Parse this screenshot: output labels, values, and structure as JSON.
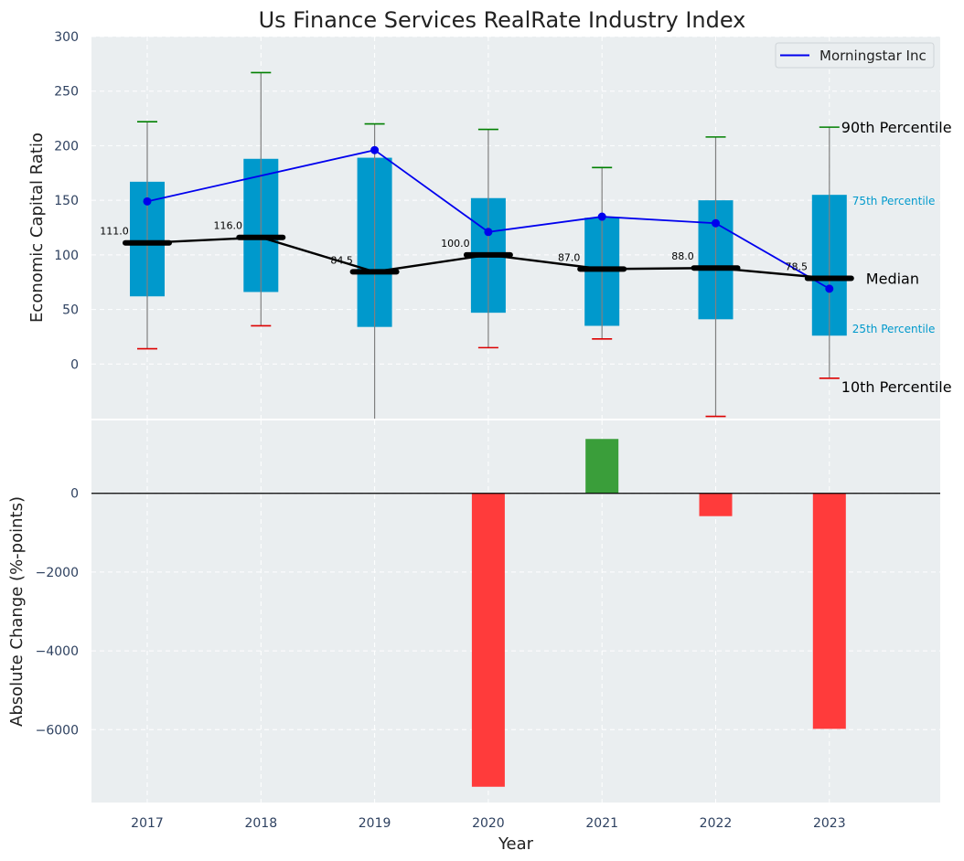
{
  "title": "Us Finance Services RealRate Industry Index",
  "xlabel": "Year",
  "colors": {
    "panel_bg": "#eaeef0",
    "box": "#0099cc",
    "median": "#000000",
    "morningstar": "#0000ee",
    "p90_cap": "#008000",
    "p10_cap": "#dd0000",
    "whisker": "#808080",
    "increase": "#3a9e3a",
    "decrease": "#ff3b3b",
    "tick_text": "#2e4160"
  },
  "chart_data": [
    {
      "type": "box",
      "ylabel": "Economic Capital Ratio",
      "ylim": [
        -50,
        300
      ],
      "yticks": [
        0,
        50,
        100,
        150,
        200,
        250,
        300
      ],
      "grid": true,
      "legend": {
        "placement": "top-right",
        "entries": [
          "Morningstar Inc"
        ]
      },
      "categories": [
        "2017",
        "2018",
        "2019",
        "2020",
        "2021",
        "2022",
        "2023"
      ],
      "p90": [
        222,
        267,
        220,
        215,
        180,
        208,
        217
      ],
      "p75": [
        167,
        188,
        189,
        152,
        134,
        150,
        155
      ],
      "median": [
        111.0,
        116.0,
        84.5,
        100.0,
        87.0,
        88.0,
        78.5
      ],
      "median_labels": [
        "111.0",
        "116.0",
        "84.5",
        "100.0",
        "87.0",
        "88.0",
        "78.5"
      ],
      "p25": [
        62,
        66,
        34,
        47,
        35,
        41,
        26
      ],
      "p10": [
        14,
        35,
        -60,
        15,
        23,
        -48,
        -13
      ],
      "series": [
        {
          "name": "Morningstar Inc",
          "values": [
            149,
            null,
            196,
            121,
            135,
            129,
            69
          ]
        }
      ],
      "annotations": {
        "p90": "90th Percentile",
        "p75": "75th Percentile",
        "median": "Median",
        "p25": "25th Percentile",
        "p10": "10th Percentile"
      }
    },
    {
      "type": "bar",
      "ylabel": "Absolute Change (%-points)",
      "ylim": [
        -7850,
        1850
      ],
      "yticks": [
        -6000,
        -4000,
        -2000,
        0
      ],
      "grid": true,
      "categories": [
        "2017",
        "2018",
        "2019",
        "2020",
        "2021",
        "2022",
        "2023"
      ],
      "values": [
        null,
        null,
        null,
        -7450,
        1380,
        -580,
        -5980
      ]
    }
  ]
}
